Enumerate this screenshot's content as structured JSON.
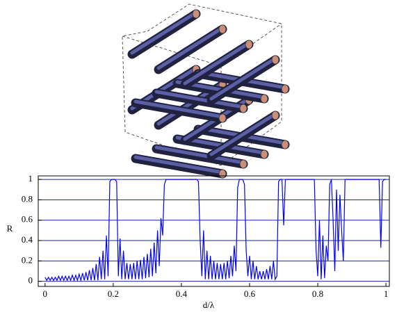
{
  "chart_data": {
    "type": "line",
    "xlabel": "d/λ",
    "ylabel": "R",
    "xlim": [
      -0.02,
      1.01
    ],
    "ylim": [
      -0.05,
      1.035
    ],
    "xticks": [
      0,
      0.2,
      0.4,
      0.6,
      0.8,
      1
    ],
    "yticks": [
      0,
      0.2,
      0.4,
      0.6,
      0.8,
      1
    ],
    "grid": true,
    "grid_color": "#1a2a9a",
    "series": [
      {
        "color": "#0000ff",
        "x": [
          0,
          0.005,
          0.01,
          0.015,
          0.02,
          0.025,
          0.03,
          0.035,
          0.04,
          0.045,
          0.05,
          0.055,
          0.06,
          0.065,
          0.07,
          0.075,
          0.08,
          0.085,
          0.09,
          0.095,
          0.1,
          0.105,
          0.11,
          0.115,
          0.12,
          0.125,
          0.13,
          0.135,
          0.14,
          0.145,
          0.15,
          0.155,
          0.16,
          0.165,
          0.17,
          0.175,
          0.18,
          0.185,
          0.19,
          0.195,
          0.2,
          0.205,
          0.21,
          0.215,
          0.22,
          0.225,
          0.23,
          0.235,
          0.24,
          0.245,
          0.25,
          0.255,
          0.26,
          0.265,
          0.27,
          0.275,
          0.28,
          0.285,
          0.29,
          0.295,
          0.3,
          0.305,
          0.31,
          0.315,
          0.32,
          0.325,
          0.33,
          0.335,
          0.34,
          0.345,
          0.35,
          0.355,
          0.36,
          0.365,
          0.37,
          0.375,
          0.38,
          0.385,
          0.39,
          0.395,
          0.4,
          0.405,
          0.41,
          0.415,
          0.42,
          0.425,
          0.43,
          0.435,
          0.44,
          0.445,
          0.45,
          0.455,
          0.46,
          0.465,
          0.47,
          0.475,
          0.48,
          0.485,
          0.49,
          0.495,
          0.5,
          0.505,
          0.51,
          0.515,
          0.52,
          0.525,
          0.53,
          0.535,
          0.54,
          0.545,
          0.55,
          0.555,
          0.56,
          0.565,
          0.57,
          0.575,
          0.58,
          0.585,
          0.59,
          0.595,
          0.6,
          0.605,
          0.61,
          0.615,
          0.62,
          0.625,
          0.63,
          0.635,
          0.64,
          0.645,
          0.65,
          0.655,
          0.66,
          0.665,
          0.67,
          0.675,
          0.68,
          0.685,
          0.69,
          0.695,
          0.7,
          0.705,
          0.71,
          0.715,
          0.72,
          0.725,
          0.73,
          0.735,
          0.74,
          0.745,
          0.75,
          0.755,
          0.76,
          0.765,
          0.77,
          0.775,
          0.78,
          0.785,
          0.79,
          0.795,
          0.8,
          0.805,
          0.81,
          0.815,
          0.82,
          0.825,
          0.83,
          0.835,
          0.84,
          0.845,
          0.85,
          0.855,
          0.86,
          0.865,
          0.87,
          0.875,
          0.88,
          0.885,
          0.89,
          0.895,
          0.9,
          0.905,
          0.91,
          0.915,
          0.92,
          0.925,
          0.93,
          0.935,
          0.94,
          0.945,
          0.95,
          0.955,
          0.96,
          0.965,
          0.97,
          0.975,
          0.98,
          0.985,
          0.99,
          0.995,
          1
        ],
        "values": [
          0.04,
          0.01,
          0.04,
          0.01,
          0.04,
          0.01,
          0.04,
          0.01,
          0.05,
          0.01,
          0.05,
          0.01,
          0.05,
          0.01,
          0.05,
          0.01,
          0.06,
          0.01,
          0.06,
          0.01,
          0.07,
          0.01,
          0.08,
          0.01,
          0.09,
          0.01,
          0.11,
          0.01,
          0.13,
          0.01,
          0.17,
          0.01,
          0.24,
          0.02,
          0.3,
          0.02,
          0.45,
          0.05,
          0.98,
          1,
          1,
          1,
          0.98,
          0.05,
          0.42,
          0.02,
          0.3,
          0.02,
          0.18,
          0.02,
          0.17,
          0.02,
          0.18,
          0.02,
          0.2,
          0.02,
          0.21,
          0.02,
          0.24,
          0.03,
          0.27,
          0.04,
          0.32,
          0.05,
          0.38,
          0.08,
          0.5,
          0.15,
          0.62,
          0.45,
          0.95,
          1,
          1,
          1,
          1,
          1,
          1,
          1,
          1,
          1,
          1,
          1,
          1,
          1,
          1,
          1,
          1,
          1,
          1,
          1,
          0.98,
          0.4,
          0.05,
          0.5,
          0.02,
          0.3,
          0.02,
          0.25,
          0.02,
          0.2,
          0.02,
          0.18,
          0.02,
          0.17,
          0.02,
          0.18,
          0.02,
          0.2,
          0.03,
          0.25,
          0.05,
          0.35,
          0.1,
          0.92,
          1,
          1,
          1,
          0.95,
          0.3,
          0.05,
          0.25,
          0.02,
          0.2,
          0.02,
          0.15,
          0.02,
          0.1,
          0.02,
          0.1,
          0.02,
          0.12,
          0.02,
          0.15,
          0.02,
          0.2,
          0.02,
          0.05,
          0.98,
          1,
          1,
          0.55,
          1,
          1,
          1,
          1,
          1,
          1,
          1,
          1,
          1,
          1,
          1,
          1,
          1,
          1,
          1,
          1,
          1,
          1,
          0.3,
          0.05,
          0.6,
          0.02,
          0.45,
          0.03,
          0.35,
          0.2,
          0.95,
          1,
          0.6,
          0.1,
          0.9,
          0.3,
          0.85,
          0.5,
          0.2,
          1,
          1,
          1,
          1,
          1,
          1,
          1,
          1,
          1,
          1,
          1,
          1,
          1,
          1,
          1,
          1,
          1,
          1,
          1,
          1,
          1,
          0.33,
          0.98,
          1,
          1
        ]
      }
    ]
  }
}
